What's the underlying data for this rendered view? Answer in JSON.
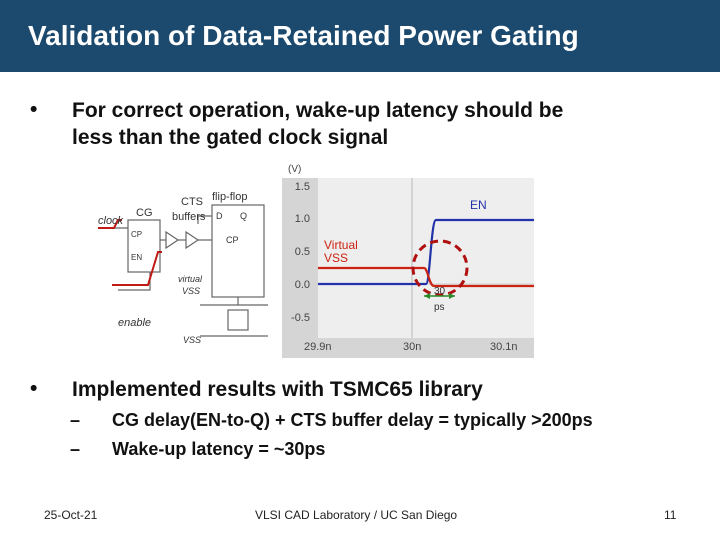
{
  "header": {
    "title": "Validation of Data-Retained Power Gating"
  },
  "bullets": [
    {
      "marker": "•",
      "lines": [
        "For correct operation, wake-up latency should be",
        "less than the gated clock signal"
      ]
    },
    {
      "marker": "•",
      "lines": [
        "Implemented results with TSMC65 library"
      ]
    }
  ],
  "sub_bullets": [
    {
      "marker": "–",
      "text": "CG delay(EN-to-Q) + CTS buffer delay = typically >200ps"
    },
    {
      "marker": "–",
      "text": "Wake-up latency = ~30ps"
    }
  ],
  "circuit": {
    "cg_label": "CG",
    "cts_label": "CTS",
    "buffers_label": "buffers",
    "flipflop_label": "flip-flop",
    "clock_label": "clock",
    "cp_label": "CP",
    "en_label": "EN",
    "d_label": "D",
    "q_label": "Q",
    "ffcp_label": "CP",
    "virtual_label": "virtual",
    "vss_label": "VSS",
    "enable_label": "enable",
    "vss_bottom_label": "VSS"
  },
  "waveform": {
    "unit": "(V)",
    "y_ticks": [
      "1.5",
      "1.0",
      "0.5",
      "0.0",
      "-0.5"
    ],
    "x_ticks": [
      "29.9n",
      "30n",
      "30.1n"
    ],
    "en_label": "EN",
    "virtual_vss_label": [
      "Virtual",
      "VSS"
    ],
    "latency_label": [
      "30",
      "ps"
    ],
    "colors": {
      "en": "#2233aa",
      "vss": "#cc2211",
      "circle": "#b01010",
      "panel": "#d5d5d5"
    }
  },
  "footer": {
    "date": "25-Oct-21",
    "center": "VLSI CAD Laboratory / UC San Diego",
    "page": "11"
  }
}
